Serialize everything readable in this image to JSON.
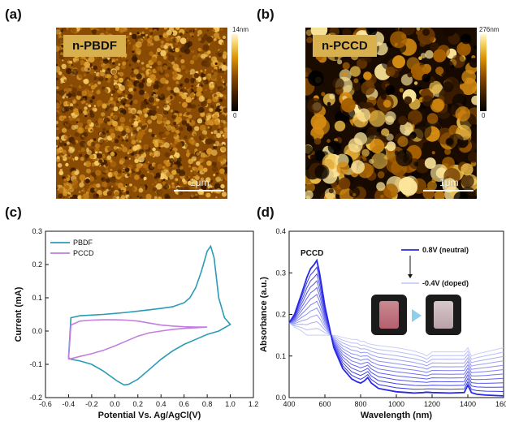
{
  "panels": {
    "a": {
      "label": "(a)",
      "tag": "n-PBDF",
      "scale_max": "14nm",
      "scale_min": "0",
      "scalebar": "1μm"
    },
    "b": {
      "label": "(b)",
      "tag": "n-PCCD",
      "scale_max": "276nm",
      "scale_min": "0",
      "scalebar": "1μm"
    },
    "c": {
      "label": "(c)"
    },
    "d": {
      "label": "(d)"
    }
  },
  "chart_data": [
    {
      "panel": "c",
      "type": "line",
      "xlabel": "Potential Vs. Ag/AgCl(V)",
      "ylabel": "Current (mA)",
      "xlim": [
        -0.6,
        1.2
      ],
      "ylim": [
        -0.2,
        0.3
      ],
      "xticks": [
        "-0.6",
        "-0.4",
        "-0.2",
        "0.0",
        "0.2",
        "0.4",
        "0.6",
        "0.8",
        "1.0",
        "1.2"
      ],
      "yticks": [
        "-0.2",
        "-0.1",
        "0.0",
        "0.1",
        "0.2",
        "0.3"
      ],
      "legend_position": "top-left",
      "series": [
        {
          "name": "PBDF",
          "color": "#2a9bb5",
          "x": [
            -0.4,
            -0.38,
            -0.3,
            -0.2,
            -0.1,
            0.0,
            0.1,
            0.2,
            0.3,
            0.4,
            0.5,
            0.6,
            0.65,
            0.7,
            0.75,
            0.8,
            0.83,
            0.86,
            0.9,
            0.95,
            1.0,
            0.9,
            0.8,
            0.7,
            0.6,
            0.5,
            0.4,
            0.3,
            0.2,
            0.12,
            0.08,
            0.02,
            -0.1,
            -0.2,
            -0.3,
            -0.38,
            -0.4
          ],
          "y": [
            -0.08,
            0.04,
            0.046,
            0.048,
            0.05,
            0.053,
            0.056,
            0.06,
            0.064,
            0.068,
            0.073,
            0.085,
            0.1,
            0.13,
            0.18,
            0.24,
            0.255,
            0.22,
            0.1,
            0.04,
            0.02,
            0.0,
            -0.01,
            -0.025,
            -0.04,
            -0.06,
            -0.085,
            -0.115,
            -0.145,
            -0.16,
            -0.162,
            -0.15,
            -0.12,
            -0.1,
            -0.09,
            -0.085,
            -0.08
          ]
        },
        {
          "name": "PCCD",
          "color": "#c47ee0",
          "x": [
            -0.4,
            -0.38,
            -0.3,
            -0.2,
            -0.1,
            0.0,
            0.1,
            0.2,
            0.3,
            0.4,
            0.5,
            0.6,
            0.7,
            0.8,
            0.7,
            0.6,
            0.5,
            0.4,
            0.3,
            0.2,
            0.1,
            0.0,
            -0.1,
            -0.2,
            -0.3,
            -0.4
          ],
          "y": [
            -0.085,
            0.018,
            0.03,
            0.033,
            0.034,
            0.034,
            0.033,
            0.03,
            0.024,
            0.018,
            0.015,
            0.013,
            0.012,
            0.012,
            0.01,
            0.008,
            0.005,
            0.0,
            -0.005,
            -0.015,
            -0.03,
            -0.045,
            -0.058,
            -0.068,
            -0.076,
            -0.085
          ]
        }
      ]
    },
    {
      "panel": "d",
      "type": "line",
      "xlabel": "Wavelength (nm)",
      "ylabel": "Absorbance (a.u.)",
      "xlim": [
        400,
        1600
      ],
      "ylim": [
        0.0,
        0.4
      ],
      "xticks": [
        "400",
        "600",
        "800",
        "1000",
        "1200",
        "1400",
        "1600"
      ],
      "yticks": [
        "0.0",
        "0.1",
        "0.2",
        "0.3",
        "0.4"
      ],
      "annotation": "PCCD",
      "legend": {
        "top": "0.8V (neutral)",
        "bottom": "-0.4V (doped)"
      },
      "colors": {
        "neutral": "#2828e6",
        "doped": "#c9cdf6"
      },
      "wavelengths": [
        400,
        430,
        470,
        500,
        520,
        540,
        555,
        570,
        600,
        650,
        700,
        750,
        780,
        800,
        820,
        840,
        860,
        900,
        1000,
        1100,
        1150,
        1170,
        1200,
        1300,
        1380,
        1400,
        1420,
        1450,
        1500,
        1550,
        1600
      ],
      "neutral": [
        0.18,
        0.2,
        0.25,
        0.29,
        0.31,
        0.32,
        0.33,
        0.3,
        0.22,
        0.12,
        0.07,
        0.045,
        0.038,
        0.035,
        0.04,
        0.048,
        0.035,
        0.022,
        0.014,
        0.011,
        0.012,
        0.013,
        0.012,
        0.011,
        0.012,
        0.03,
        0.012,
        0.008,
        0.006,
        0.005,
        0.004
      ],
      "doped": [
        0.18,
        0.17,
        0.16,
        0.15,
        0.15,
        0.15,
        0.15,
        0.15,
        0.15,
        0.15,
        0.145,
        0.14,
        0.14,
        0.135,
        0.135,
        0.13,
        0.128,
        0.125,
        0.12,
        0.112,
        0.105,
        0.1,
        0.11,
        0.11,
        0.11,
        0.12,
        0.1,
        0.105,
        0.11,
        0.115,
        0.12
      ],
      "intermediate_count": 10
    }
  ]
}
